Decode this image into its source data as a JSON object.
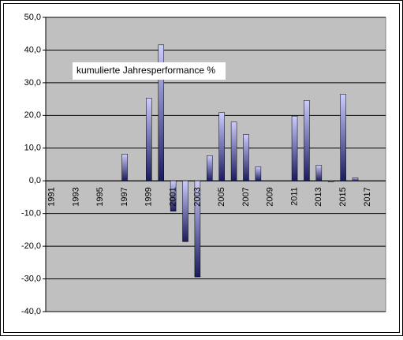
{
  "chart_data": {
    "type": "bar",
    "annotation": "kumulierte Jahresperformance %",
    "categories": [
      "1991",
      null,
      "1993",
      null,
      "1995",
      null,
      "1997",
      null,
      "1999",
      null,
      "2001",
      null,
      "2003",
      null,
      "2005",
      null,
      "2007",
      null,
      "2009",
      null,
      "2011",
      null,
      "2013",
      null,
      "2015",
      null,
      "2017",
      null
    ],
    "values": [
      null,
      null,
      null,
      null,
      null,
      null,
      8.2,
      null,
      25.3,
      41.6,
      -9.3,
      -18.6,
      -29.4,
      7.7,
      20.9,
      18.0,
      14.2,
      4.3,
      null,
      null,
      19.8,
      24.6,
      4.8,
      -0.3,
      26.5,
      0.9,
      null,
      null
    ],
    "color": "#9999ff",
    "ylim": [
      -40,
      50
    ],
    "yticks": [
      {
        "value": -40,
        "label": "-40,0"
      },
      {
        "value": -30,
        "label": "-30,0"
      },
      {
        "value": -20,
        "label": "-20,0"
      },
      {
        "value": -10,
        "label": "-10,0"
      },
      {
        "value": 0,
        "label": "0,0"
      },
      {
        "value": 10,
        "label": "10,0"
      },
      {
        "value": 20,
        "label": "20,0"
      },
      {
        "value": 30,
        "label": "30,0"
      },
      {
        "value": 40,
        "label": "40,0"
      },
      {
        "value": 50,
        "label": "50,0"
      }
    ],
    "grid": true
  }
}
